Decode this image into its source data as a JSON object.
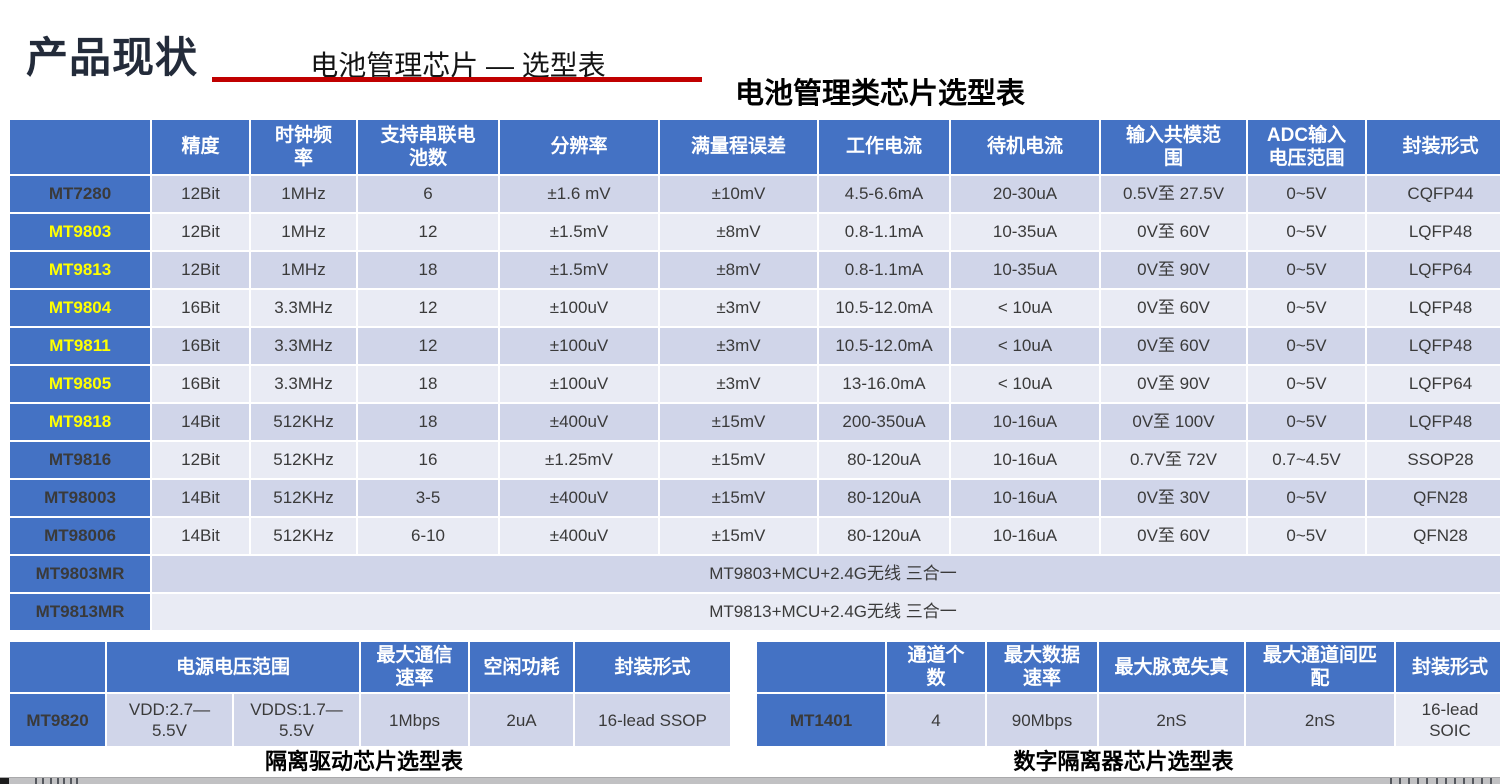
{
  "page": {
    "title": "产品现状",
    "subtitle": "电池管理芯片 — 选型表",
    "main_table_title": "电池管理类芯片选型表"
  },
  "colors": {
    "header_blue": "#4472C4",
    "row_dark": "#D0D5E9",
    "row_light": "#E9EBF4",
    "highlight_yellow": "#FFFF00",
    "red_rule": "#C00000"
  },
  "main_table": {
    "headers": [
      "",
      "精度",
      "时钟频\n率",
      "支持串联电\n池数",
      "分辨率",
      "满量程误差",
      "工作电流",
      "待机电流",
      "输入共模范\n围",
      "ADC输入\n电压范围",
      "封装形式"
    ],
    "rows": [
      {
        "name": "MT7280",
        "name_color": "white",
        "bold": false,
        "cells": [
          "12Bit",
          "1MHz",
          "6",
          "±1.6 mV",
          "±10mV",
          "4.5-6.6mA",
          "20-30uA",
          "0.5V至 27.5V",
          "0~5V",
          "CQFP44"
        ]
      },
      {
        "name": "MT9803",
        "name_color": "yellow",
        "bold": false,
        "cells": [
          "12Bit",
          "1MHz",
          "12",
          "±1.5mV",
          "±8mV",
          "0.8-1.1mA",
          "10-35uA",
          "0V至 60V",
          "0~5V",
          "LQFP48"
        ]
      },
      {
        "name": "MT9813",
        "name_color": "yellow",
        "bold": true,
        "cells": [
          "12Bit",
          "1MHz",
          "18",
          "±1.5mV",
          "±8mV",
          "0.8-1.1mA",
          "10-35uA",
          "0V至 90V",
          "0~5V",
          "LQFP64"
        ]
      },
      {
        "name": "MT9804",
        "name_color": "yellow",
        "bold": false,
        "cells": [
          "16Bit",
          "3.3MHz",
          "12",
          "±100uV",
          "±3mV",
          "10.5-12.0mA",
          "< 10uA",
          "0V至 60V",
          "0~5V",
          "LQFP48"
        ]
      },
      {
        "name": "MT9811",
        "name_color": "yellow",
        "bold": false,
        "cells": [
          "16Bit",
          "3.3MHz",
          "12",
          "±100uV",
          "±3mV",
          "10.5-12.0mA",
          "< 10uA",
          "0V至 60V",
          "0~5V",
          "LQFP48"
        ]
      },
      {
        "name": "MT9805",
        "name_color": "yellow",
        "bold": true,
        "cells": [
          "16Bit",
          "3.3MHz",
          "18",
          "±100uV",
          "±3mV",
          "13-16.0mA",
          "< 10uA",
          "0V至 90V",
          "0~5V",
          "LQFP64"
        ]
      },
      {
        "name": "MT9818",
        "name_color": "yellow",
        "bold": false,
        "cells": [
          "14Bit",
          "512KHz",
          "18",
          "±400uV",
          "±15mV",
          "200-350uA",
          "10-16uA",
          "0V至 100V",
          "0~5V",
          "LQFP48"
        ]
      },
      {
        "name": "MT9816",
        "name_color": "white",
        "bold": false,
        "cells": [
          "12Bit",
          "512KHz",
          "16",
          "±1.25mV",
          "±15mV",
          "80-120uA",
          "10-16uA",
          "0.7V至 72V",
          "0.7~4.5V",
          "SSOP28"
        ]
      },
      {
        "name": "MT98003",
        "name_color": "white",
        "bold": false,
        "cells": [
          "14Bit",
          "512KHz",
          "3-5",
          "±400uV",
          "±15mV",
          "80-120uA",
          "10-16uA",
          "0V至 30V",
          "0~5V",
          "QFN28"
        ]
      },
      {
        "name": "MT98006",
        "name_color": "white",
        "bold": false,
        "cells": [
          "14Bit",
          "512KHz",
          "6-10",
          "±400uV",
          "±15mV",
          "80-120uA",
          "10-16uA",
          "0V至 60V",
          "0~5V",
          "QFN28"
        ]
      }
    ],
    "merged_rows": [
      {
        "name": "MT9803MR",
        "text": "MT9803+MCU+2.4G无线 三合一"
      },
      {
        "name": "MT9813MR",
        "text": "MT9813+MCU+2.4G无线 三合一"
      }
    ]
  },
  "left_table": {
    "headers": {
      "corner": "",
      "voltage": "电源电压范围",
      "rate": "最大通信\n速率",
      "idle": "空闲功耗",
      "pkg": "封装形式"
    },
    "row": {
      "name": "MT9820",
      "vdd": "VDD:2.7—\n5.5V",
      "vdds": "VDDS:1.7—\n5.5V",
      "rate": "1Mbps",
      "idle": "2uA",
      "pkg": "16-lead SSOP"
    },
    "caption": "隔离驱动芯片选型表"
  },
  "right_table": {
    "headers": {
      "corner": "",
      "channels": "通道个\n数",
      "rate": "最大数据\n速率",
      "distortion": "最大脉宽失真",
      "match": "最大通道间匹\n配",
      "pkg": "封装形式"
    },
    "row": {
      "name": "MT1401",
      "channels": "4",
      "rate": "90Mbps",
      "distortion": "2nS",
      "match": "2nS",
      "pkg": "16-lead\nSOIC"
    },
    "caption": "数字隔离器芯片选型表"
  }
}
